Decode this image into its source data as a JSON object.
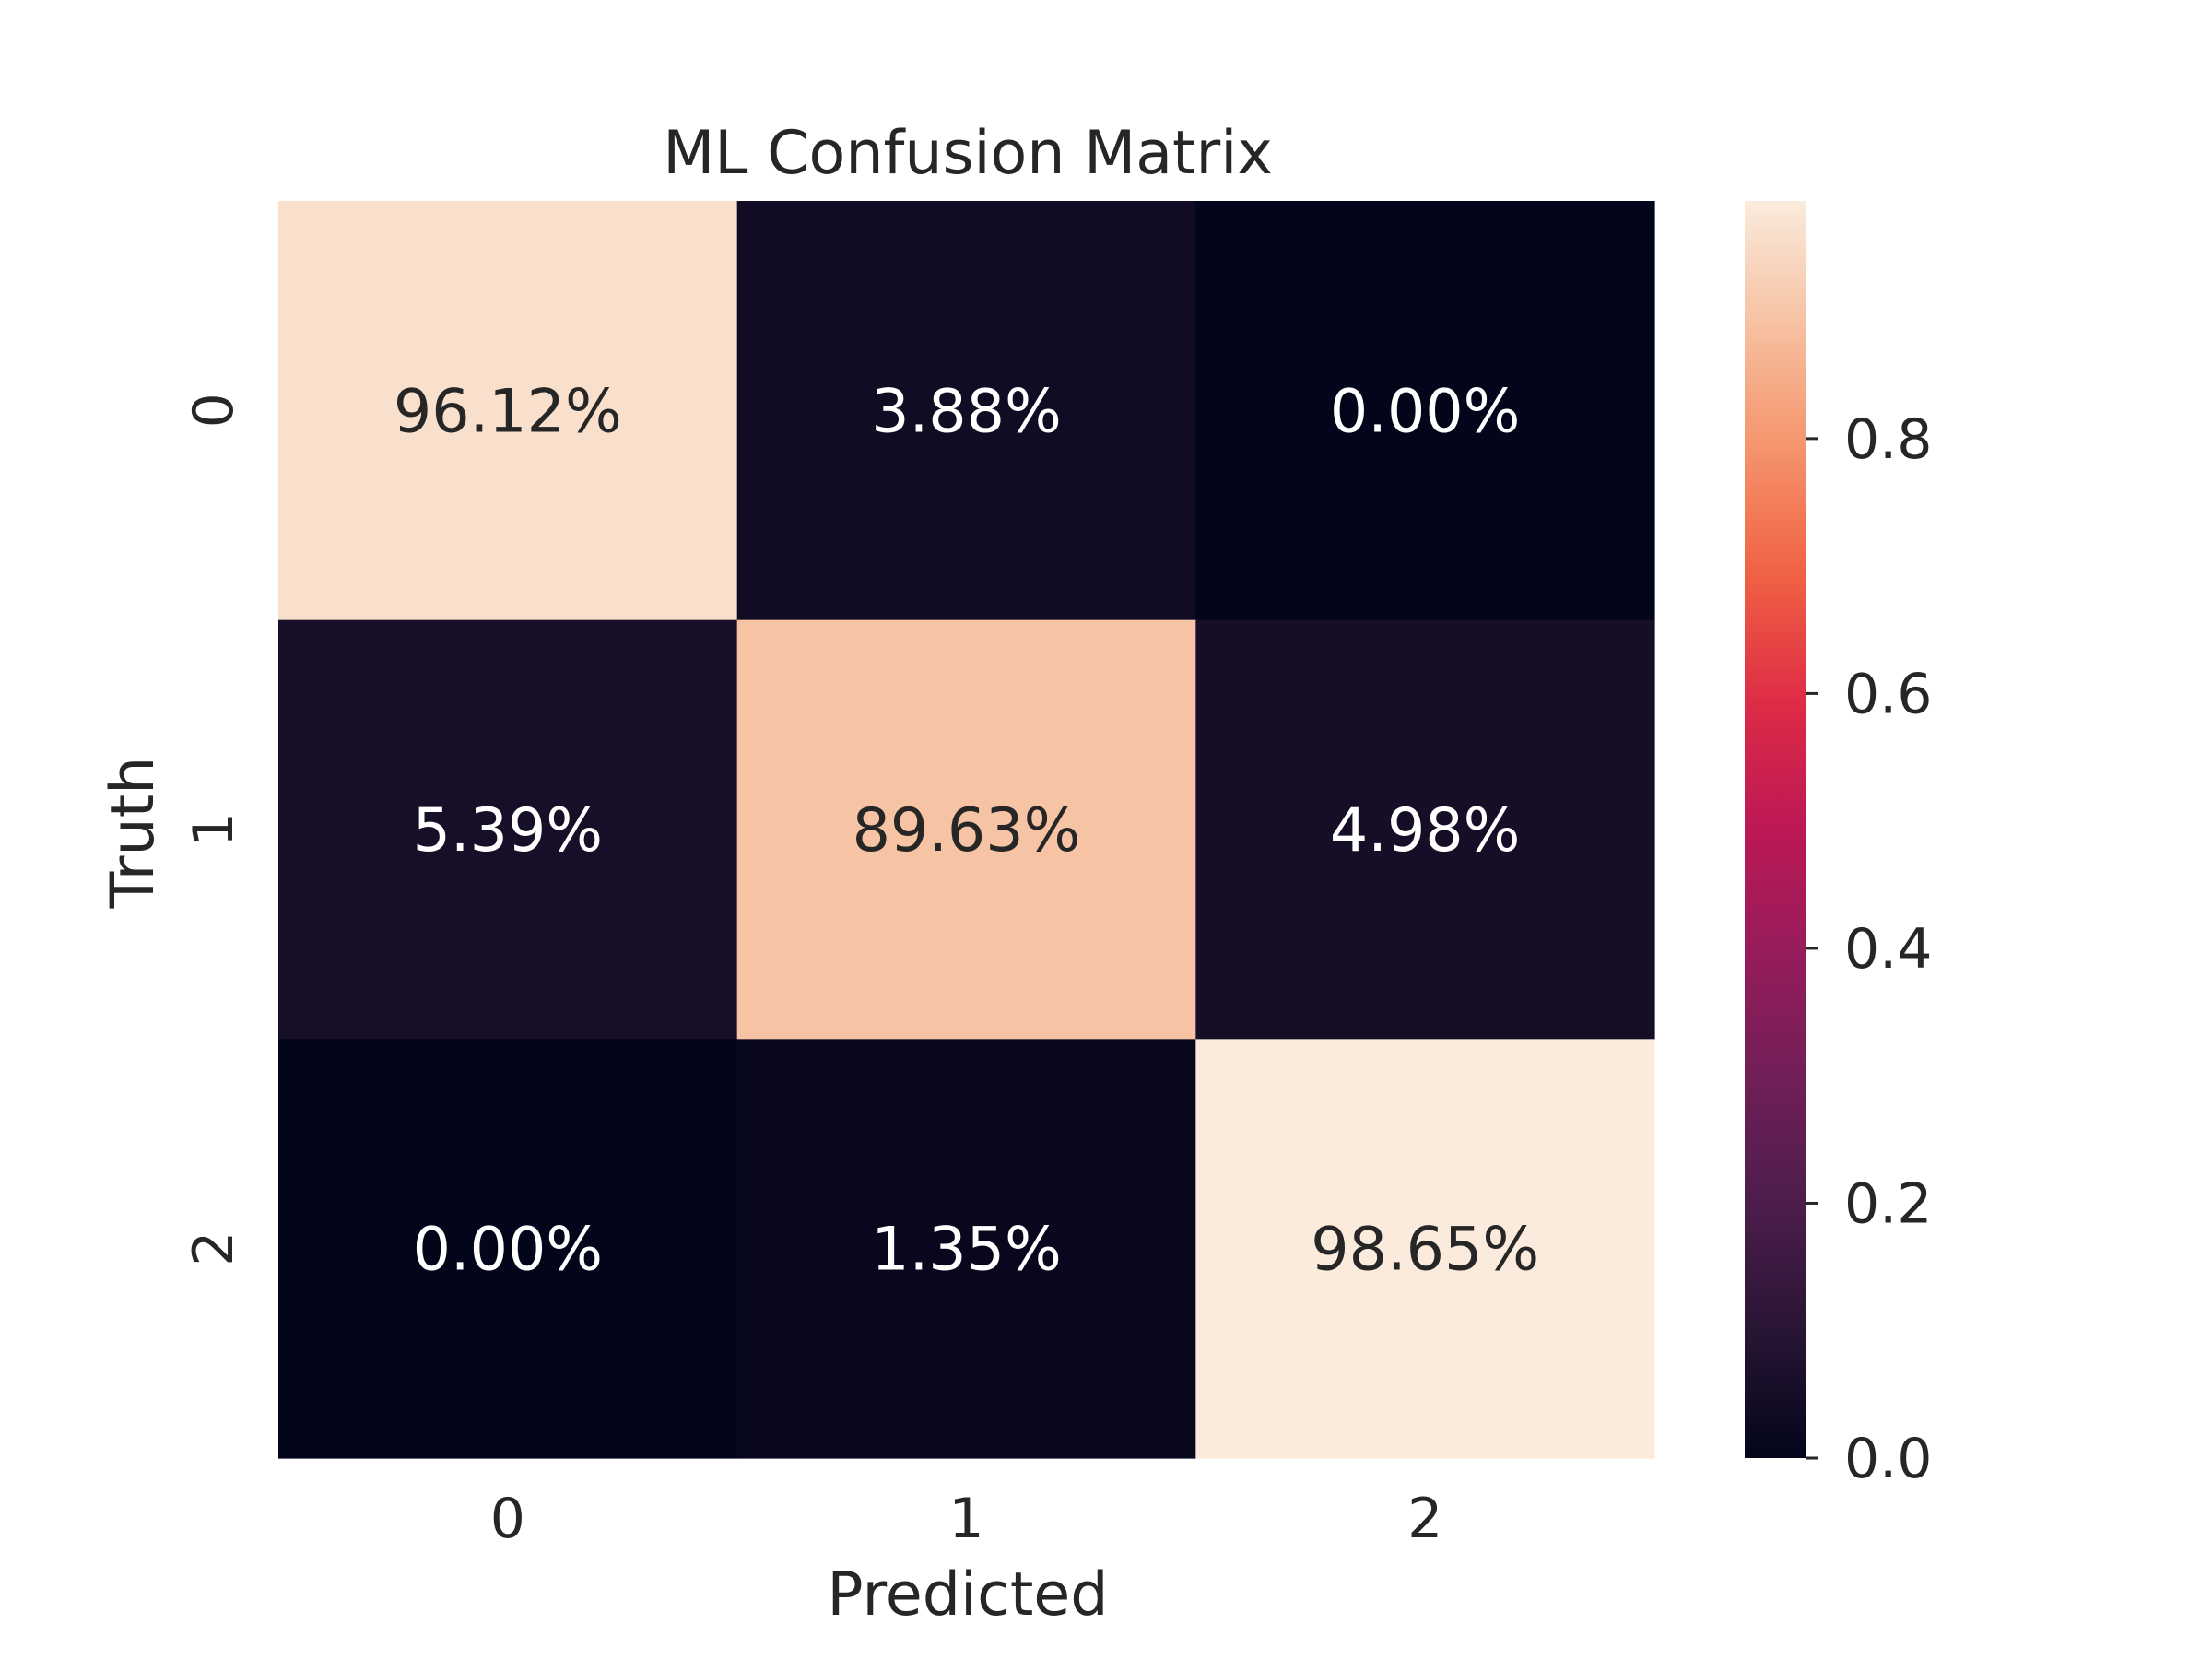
{
  "chart_data": {
    "type": "heatmap",
    "title": "ML Confusion Matrix",
    "xlabel": "Predicted",
    "ylabel": "Truth",
    "x_categories": [
      "0",
      "1",
      "2"
    ],
    "y_categories": [
      "0",
      "1",
      "2"
    ],
    "values": [
      [
        0.9612,
        0.0388,
        0.0
      ],
      [
        0.0539,
        0.8963,
        0.0498
      ],
      [
        0.0,
        0.0135,
        0.9865
      ]
    ],
    "annotations": [
      [
        "96.12%",
        "3.88%",
        "0.00%"
      ],
      [
        "5.39%",
        "89.63%",
        "4.98%"
      ],
      [
        "0.00%",
        "1.35%",
        "98.65%"
      ]
    ],
    "colorbar": {
      "range": [
        0,
        0.9865
      ],
      "ticks": [
        0.0,
        0.2,
        0.4,
        0.6,
        0.8
      ],
      "tick_labels": [
        "0.0",
        "0.2",
        "0.4",
        "0.6",
        "0.8"
      ],
      "colormap": "rocket"
    },
    "grid": false
  }
}
